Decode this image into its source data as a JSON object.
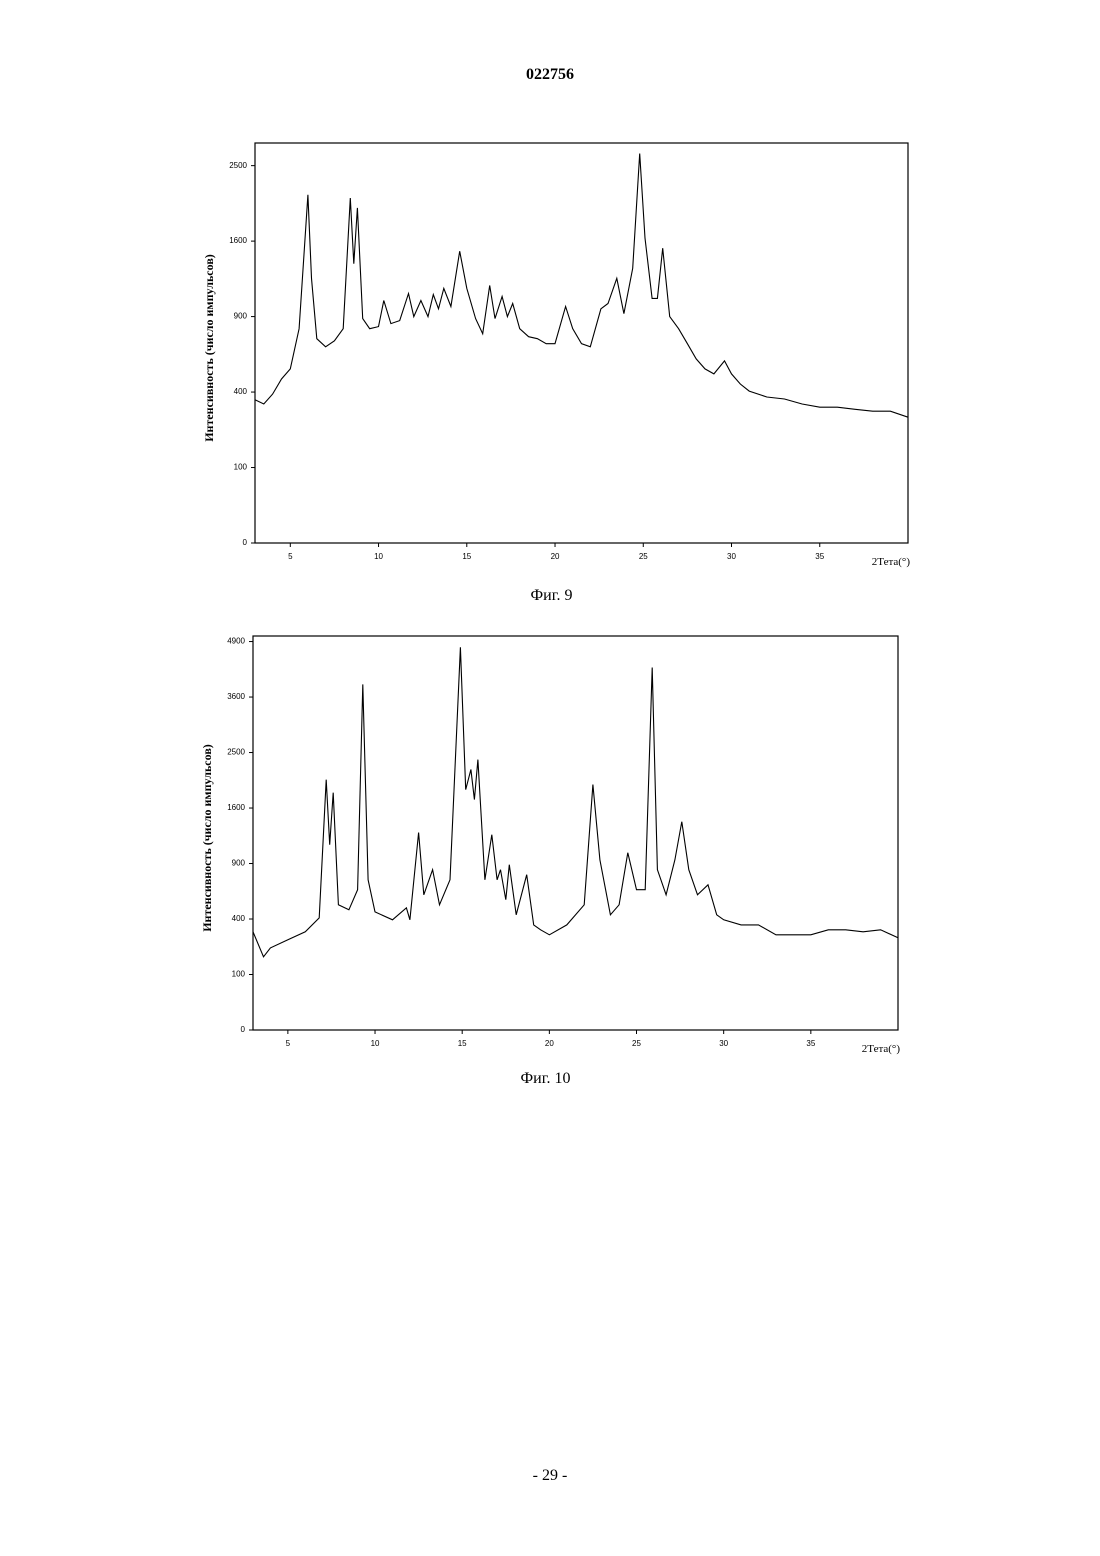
{
  "header": "022756",
  "footer": "- 29 -",
  "chart_data": [
    {
      "type": "line",
      "caption": "Фиг. 9",
      "y_label": "Интенсивность (число импульсов)",
      "x_label": "2Тета(°)",
      "y_scale": "sqrt",
      "color": "#000000",
      "xlim": [
        3,
        40
      ],
      "xticks": [
        5,
        10,
        15,
        20,
        25,
        30,
        35
      ],
      "ylim": [
        0,
        2809
      ],
      "yticks": [
        0,
        100,
        400,
        900,
        1600,
        2500
      ],
      "x": [
        3,
        3.5,
        4,
        4.5,
        5,
        5.5,
        5.8,
        6.0,
        6.2,
        6.5,
        7,
        7.5,
        8,
        8.4,
        8.6,
        8.8,
        9.1,
        9.5,
        10,
        10.3,
        10.7,
        11.2,
        11.7,
        12,
        12.4,
        12.8,
        13.1,
        13.4,
        13.7,
        14.1,
        14.6,
        15.0,
        15.5,
        15.9,
        16.3,
        16.6,
        17,
        17.3,
        17.6,
        18,
        18.5,
        19,
        19.5,
        20,
        20.6,
        21,
        21.5,
        22,
        22.6,
        23,
        23.5,
        23.9,
        24.4,
        24.8,
        25.1,
        25.5,
        25.8,
        26.1,
        26.5,
        27,
        27.5,
        28,
        28.5,
        29,
        29.6,
        30,
        30.5,
        31,
        32,
        33,
        34,
        35,
        36,
        37,
        38,
        39,
        40
      ],
      "values": [
        360,
        339,
        389,
        472,
        532,
        806,
        1526,
        2128,
        1230,
        733,
        676,
        718,
        806,
        2090,
        1370,
        1971,
        884,
        806,
        822,
        1032,
        845,
        868,
        1093,
        900,
        1032,
        900,
        1084,
        963,
        1138,
        982,
        1495,
        1138,
        884,
        769,
        1165,
        884,
        1067,
        900,
        1007,
        806,
        747,
        733,
        697,
        697,
        982,
        806,
        697,
        676,
        963,
        1007,
        1230,
        924,
        1325,
        2663,
        1632,
        1050,
        1050,
        1526,
        900,
        806,
        697,
        595,
        532,
        502,
        582,
        502,
        444,
        405,
        374,
        364,
        339,
        324,
        324,
        314,
        305,
        305,
        278
      ]
    },
    {
      "type": "line",
      "caption": "Фиг. 10",
      "y_label": "Интенсивность (число импульсов)",
      "x_label": "2Тета(°)",
      "y_scale": "sqrt",
      "color": "#000000",
      "xlim": [
        3,
        40
      ],
      "xticks": [
        5,
        10,
        15,
        20,
        25,
        30,
        35
      ],
      "ylim": [
        0,
        5041
      ],
      "yticks": [
        0,
        100,
        400,
        900,
        1600,
        2500,
        3600,
        4900
      ],
      "x": [
        3,
        3.6,
        4,
        5,
        6,
        6.8,
        7.2,
        7.4,
        7.6,
        7.9,
        8.5,
        9.0,
        9.3,
        9.6,
        10,
        11,
        11.8,
        12,
        12.5,
        12.8,
        13.3,
        13.7,
        14.3,
        14.9,
        15.2,
        15.5,
        15.7,
        15.9,
        16.3,
        16.7,
        17.0,
        17.2,
        17.5,
        17.7,
        18.1,
        18.7,
        19.1,
        19.5,
        20,
        21,
        22,
        22.5,
        22.9,
        23.5,
        24,
        24.5,
        25,
        25.5,
        25.9,
        26.2,
        26.7,
        27.2,
        27.6,
        28,
        28.5,
        29.1,
        29.6,
        30,
        31,
        32,
        33,
        34,
        35,
        36,
        37,
        38,
        39,
        40
      ],
      "values": [
        313,
        174,
        219,
        264,
        313,
        408,
        2034,
        1115,
        1830,
        509,
        469,
        639,
        3879,
        733,
        453,
        394,
        485,
        394,
        1265,
        594,
        834,
        509,
        733,
        4755,
        1877,
        2203,
        1724,
        2375,
        733,
        1239,
        733,
        834,
        551,
        887,
        431,
        783,
        359,
        326,
        294,
        359,
        509,
        1956,
        941,
        431,
        509,
        1021,
        639,
        639,
        4267,
        834,
        594,
        941,
        1409,
        834,
        594,
        685,
        431,
        394,
        359,
        359,
        294,
        294,
        294,
        326,
        326,
        313,
        326,
        276
      ]
    }
  ]
}
